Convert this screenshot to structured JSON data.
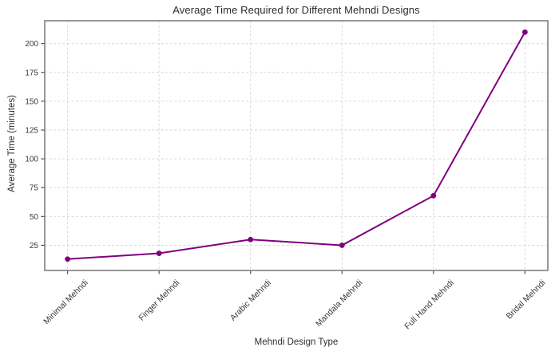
{
  "chart_data": {
    "type": "line",
    "title": "Average Time Required for Different Mehndi Designs",
    "xlabel": "Mehndi Design Type",
    "ylabel": "Average Time (minutes)",
    "categories": [
      "Minimal Mehndi",
      "Finger Mehndi",
      "Arabic Mehndi",
      "Mandala Mehndi",
      "Full Hand Mehndi",
      "Bridal Mehndi"
    ],
    "values": [
      13,
      18,
      30,
      25,
      68,
      210
    ],
    "yticks": [
      25,
      50,
      75,
      100,
      125,
      150,
      175,
      200
    ],
    "ylim": [
      3.15,
      219.85
    ],
    "xlim": [
      -0.25,
      5.25
    ],
    "grid": "dashed-both-axes",
    "legend_position": "none",
    "line_color": "#800080",
    "marker": "circle"
  },
  "colors": {
    "background": "#ffffff",
    "grid": "#d4d4d4",
    "spine": "#7f7f7f",
    "tick_mark": "#3c3c3c",
    "text": "#2e2e2e"
  }
}
